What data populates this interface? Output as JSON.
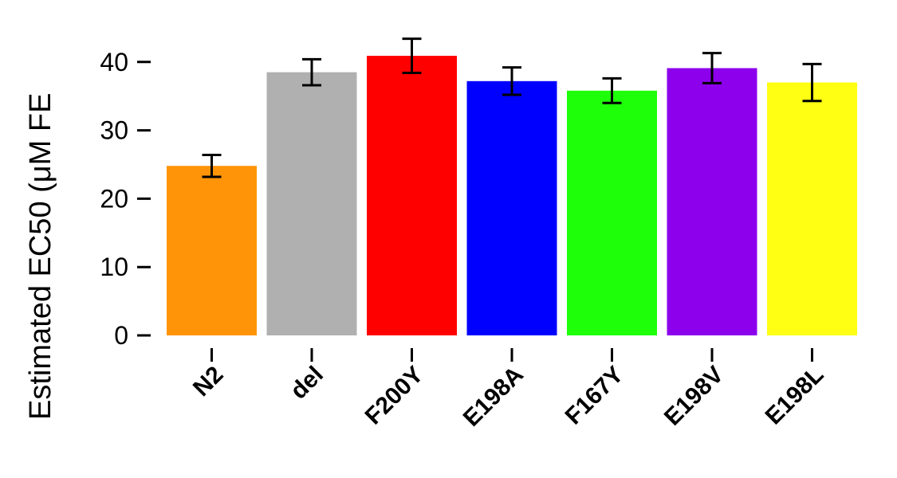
{
  "chart_data": {
    "type": "bar",
    "title": "",
    "xlabel": "",
    "ylabel": "Estimated EC50 (μM FE",
    "categories": [
      "N2",
      "del",
      "F200Y",
      "E198A",
      "F167Y",
      "E198V",
      "E198L"
    ],
    "values": [
      24.8,
      38.5,
      40.9,
      37.2,
      35.8,
      39.1,
      37.0
    ],
    "errors": [
      1.6,
      1.9,
      2.5,
      2.0,
      1.8,
      2.2,
      2.7
    ],
    "colors": [
      "#FF9408",
      "#B0B0B0",
      "#FF0000",
      "#0000FF",
      "#1EFF0A",
      "#8C00EC",
      "#FFFF14"
    ],
    "ylim": [
      0,
      46
    ],
    "yticks": [
      0,
      10,
      20,
      30,
      40
    ],
    "grid": false,
    "legend": "none"
  }
}
